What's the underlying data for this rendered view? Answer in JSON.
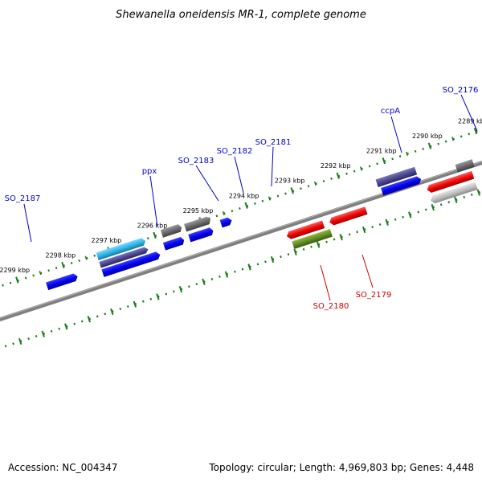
{
  "title": "Shewanella oneidensis MR-1, complete genome",
  "footer": {
    "accession": "Accession: NC_004347",
    "summary": "Topology: circular; Length: 4,969,803 bp; Genes: 4,448"
  },
  "ruler": {
    "tick_labels": [
      "2299 kbp",
      "2298 kbp",
      "2297 kbp",
      "2296 kbp",
      "2295 kbp",
      "2294 kbp",
      "2293 kbp",
      "2292 kbp",
      "2291 kbp",
      "2290 kbp",
      "2289 kbp"
    ]
  },
  "colors": {
    "forward_label": "#0000cc",
    "reverse_label": "#cc0000",
    "backbone": "#7f7f7f",
    "ruler": "#1e7d1e",
    "blue": "#0000ee",
    "light_blue": "#29b3e6",
    "purple": "#4a468c",
    "grey": "#666666",
    "red": "#ee0000",
    "olive": "#5e8a1e",
    "light_grey": "#bbbbbb"
  },
  "gene_labels": {
    "SO_2187": "SO_2187",
    "ppx": "ppx",
    "SO_2183": "SO_2183",
    "SO_2182": "SO_2182",
    "SO_2181": "SO_2181",
    "ccpA": "ccpA",
    "SO_2176": "SO_2176",
    "SO_2180": "SO_2180",
    "SO_2179": "SO_2179"
  }
}
